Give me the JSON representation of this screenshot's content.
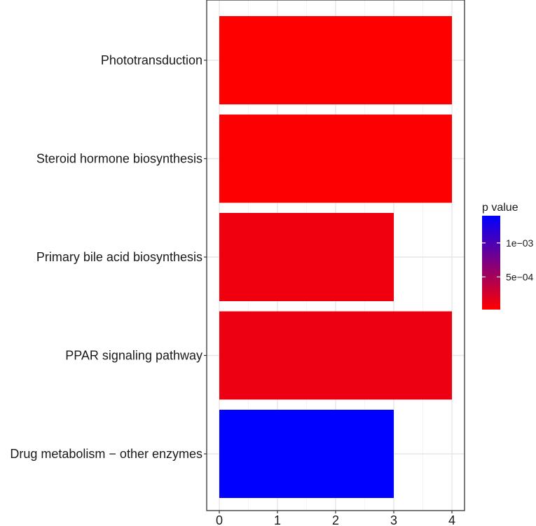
{
  "chart_data": {
    "type": "bar",
    "orientation": "horizontal",
    "categories": [
      "Phototransduction",
      "Steroid hormone biosynthesis",
      "Primary bile acid biosynthesis",
      "PPAR signaling pathway",
      "Drug metabolism − other enzymes"
    ],
    "values": [
      4,
      4,
      3,
      4,
      3
    ],
    "p_values": [
      2e-05,
      3e-05,
      0.0001,
      0.00012,
      0.0014
    ],
    "x_ticks": [
      "0",
      "1",
      "2",
      "3",
      "4"
    ],
    "xlim": [
      0,
      4
    ],
    "grid": true,
    "legend": {
      "title": "p value",
      "placement": "right",
      "ticks": [
        "1e−03",
        "5e−04"
      ],
      "tick_values": [
        0.001,
        0.0005
      ],
      "range": [
        2e-05,
        0.0014
      ],
      "color_low": "#FF0000",
      "color_high": "#0000FF"
    }
  }
}
